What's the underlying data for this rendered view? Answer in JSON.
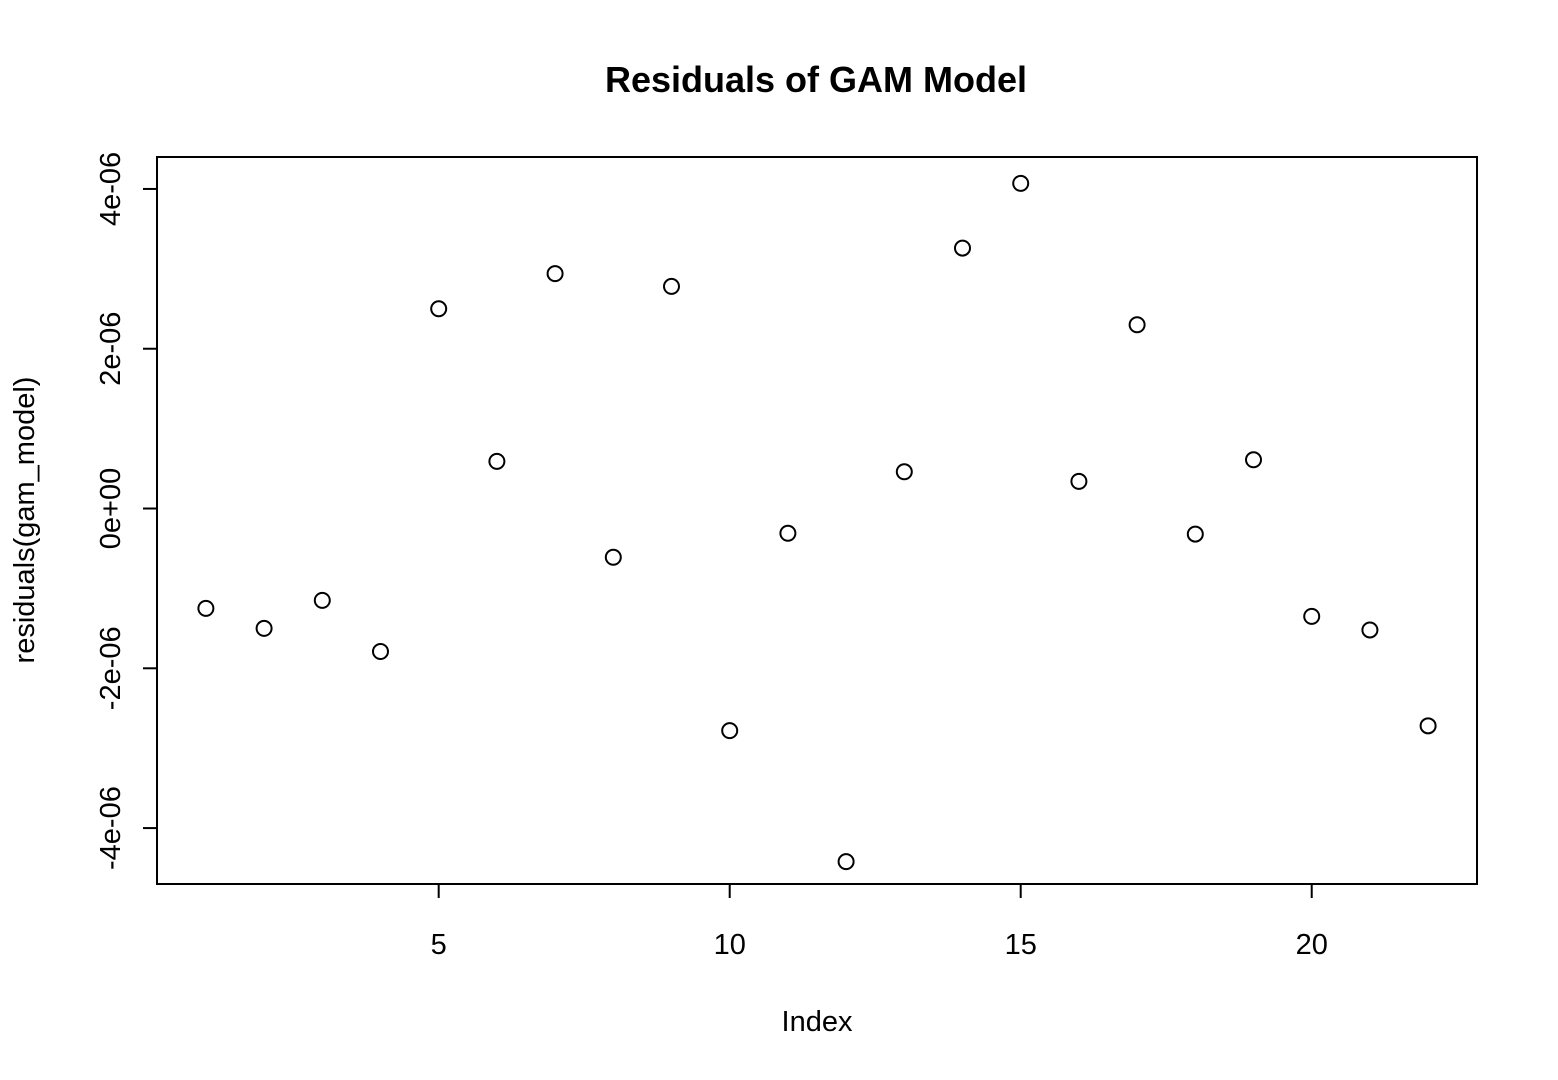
{
  "chart_data": {
    "type": "scatter",
    "title": "Residuals of GAM Model",
    "xlabel": "Index",
    "ylabel": "residuals(gam_model)",
    "x": [
      1,
      2,
      3,
      4,
      5,
      6,
      7,
      8,
      9,
      10,
      11,
      12,
      13,
      14,
      15,
      16,
      17,
      18,
      19,
      20,
      21,
      22
    ],
    "y": [
      -1.25e-06,
      -1.5e-06,
      -1.15e-06,
      -1.79e-06,
      2.5e-06,
      5.9e-07,
      2.94e-06,
      -6.1e-07,
      2.78e-06,
      -2.78e-06,
      -3.1e-07,
      -4.42e-06,
      4.6e-07,
      3.26e-06,
      4.07e-06,
      3.4e-07,
      2.3e-06,
      -3.2e-07,
      6.1e-07,
      -1.35e-06,
      -1.52e-06,
      -2.72e-06
    ],
    "xlim": [
      0.16,
      22.84
    ],
    "ylim": [
      -4.7e-06,
      4.4e-06
    ],
    "xticks": [
      5,
      10,
      15,
      20
    ],
    "xtick_labels": [
      "5",
      "10",
      "15",
      "20"
    ],
    "yticks": [
      -4e-06,
      -2e-06,
      0,
      2e-06,
      4e-06
    ],
    "ytick_labels": [
      "-4e-06",
      "-2e-06",
      "0e+00",
      "2e-06",
      "4e-06"
    ],
    "grid": false,
    "marker": "open-circle"
  }
}
